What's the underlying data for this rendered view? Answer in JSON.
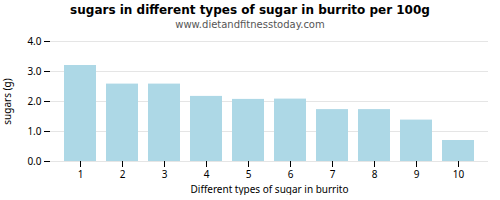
{
  "chart_data": {
    "type": "bar",
    "title": "sugars in different types of sugar in burrito per 100g",
    "subtitle": "www.dietandfitnesstoday.com",
    "xlabel": "Different types of sugar in burrito",
    "ylabel": "sugars (g)",
    "categories": [
      1,
      2,
      3,
      4,
      5,
      6,
      7,
      8,
      9,
      10
    ],
    "values": [
      3.2,
      2.58,
      2.58,
      2.17,
      2.07,
      2.08,
      1.73,
      1.73,
      1.38,
      0.7
    ],
    "color": "#add8e6",
    "ylim": [
      0.0,
      4.0
    ],
    "yticks": [
      {
        "value": 0.0,
        "label": "0.0"
      },
      {
        "value": 1.0,
        "label": "1.0"
      },
      {
        "value": 2.0,
        "label": "2.0"
      },
      {
        "value": 3.0,
        "label": "3.0"
      },
      {
        "value": 4.0,
        "label": "4.0"
      }
    ],
    "grid": true
  }
}
